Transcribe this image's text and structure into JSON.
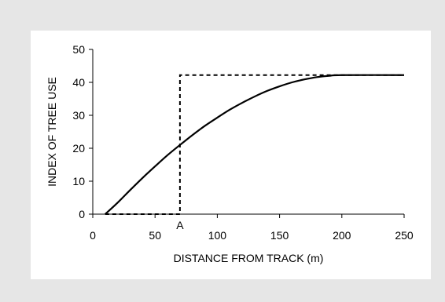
{
  "chart_data": {
    "type": "line",
    "title": "",
    "xlabel": "DISTANCE FROM TRACK (m)",
    "ylabel": "INDEX OF TREE USE",
    "xlim": [
      0,
      250
    ],
    "ylim": [
      0,
      50
    ],
    "x_ticks": [
      0,
      50,
      100,
      150,
      200,
      250
    ],
    "y_ticks": [
      0,
      10,
      20,
      30,
      40,
      50
    ],
    "grid": false,
    "legend": "none",
    "annotations": [
      {
        "text": "A",
        "x": 70,
        "y": 0
      }
    ],
    "series": [
      {
        "style": "solid",
        "x": [
          10,
          20,
          30,
          40,
          50,
          60,
          70,
          80,
          90,
          100,
          110,
          120,
          130,
          140,
          150,
          160,
          170,
          180,
          190,
          200,
          250
        ],
        "y": [
          0,
          3.5,
          7.3,
          11.0,
          14.5,
          17.9,
          21.0,
          24.0,
          26.8,
          29.3,
          31.7,
          33.8,
          35.7,
          37.4,
          38.8,
          40.0,
          40.9,
          41.6,
          42.0,
          42.2,
          42.2
        ]
      },
      {
        "style": "dashed",
        "x": [
          10,
          70,
          70,
          250
        ],
        "y": [
          0,
          0,
          42.2,
          42.2
        ]
      }
    ]
  },
  "colors": {
    "background": "#e6e6e6",
    "panel": "#ffffff",
    "line": "#000000"
  }
}
